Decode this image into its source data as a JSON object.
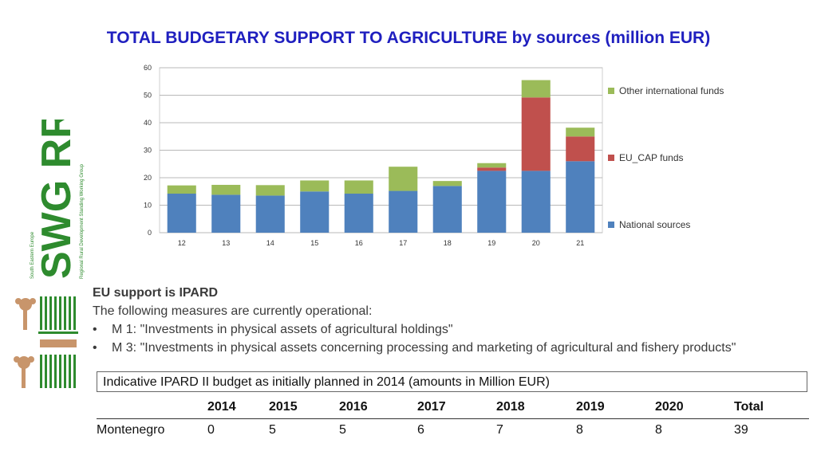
{
  "slide": {
    "title": "TOTAL BUDGETARY SUPPORT TO AGRICULTURE by sources (million EUR)"
  },
  "logo": {
    "text": "SWG RRD",
    "subtext": "Regional Rural Development Standing Working Group",
    "region_text": "South Eastern Europe"
  },
  "chart_data": {
    "type": "bar",
    "stacked": true,
    "categories": [
      "12",
      "13",
      "14",
      "15",
      "16",
      "17",
      "18",
      "19",
      "20",
      "21"
    ],
    "series": [
      {
        "name": "National sources",
        "color": "#4f81bd",
        "values": [
          14.2,
          13.8,
          13.5,
          15.0,
          14.2,
          15.2,
          17.0,
          22.5,
          22.5,
          26.0
        ]
      },
      {
        "name": "EU_CAP funds",
        "color": "#c0504d",
        "values": [
          0,
          0,
          0,
          0,
          0,
          0,
          0,
          1.2,
          26.7,
          9.0
        ]
      },
      {
        "name": "Other international funds",
        "color": "#9bbb59",
        "values": [
          3.0,
          3.6,
          3.8,
          4.0,
          4.8,
          8.8,
          1.8,
          1.6,
          6.3,
          3.2
        ]
      }
    ],
    "y_ticks": [
      "0",
      "10",
      "20",
      "30",
      "40",
      "50",
      "60"
    ],
    "ylim": [
      0,
      60
    ],
    "grid": true,
    "legend_position": "right"
  },
  "text": {
    "heading": "EU support is IPARD",
    "intro": "The following measures are currently operational:",
    "bullets": [
      "M 1: \"Investments in physical assets of agricultural holdings\"",
      "M 3: \"Investments in physical assets concerning processing and marketing of agricultural and fishery products\""
    ],
    "bullet_symbol": "•"
  },
  "table": {
    "caption": "Indicative IPARD II budget as initially planned in 2014 (amounts in Million EUR)",
    "headers": [
      "",
      "2014",
      "2015",
      "2016",
      "2017",
      "2018",
      "2019",
      "2020",
      "Total"
    ],
    "rows": [
      [
        "Montenegro",
        "0",
        "5",
        "5",
        "6",
        "7",
        "8",
        "8",
        "39"
      ]
    ]
  }
}
